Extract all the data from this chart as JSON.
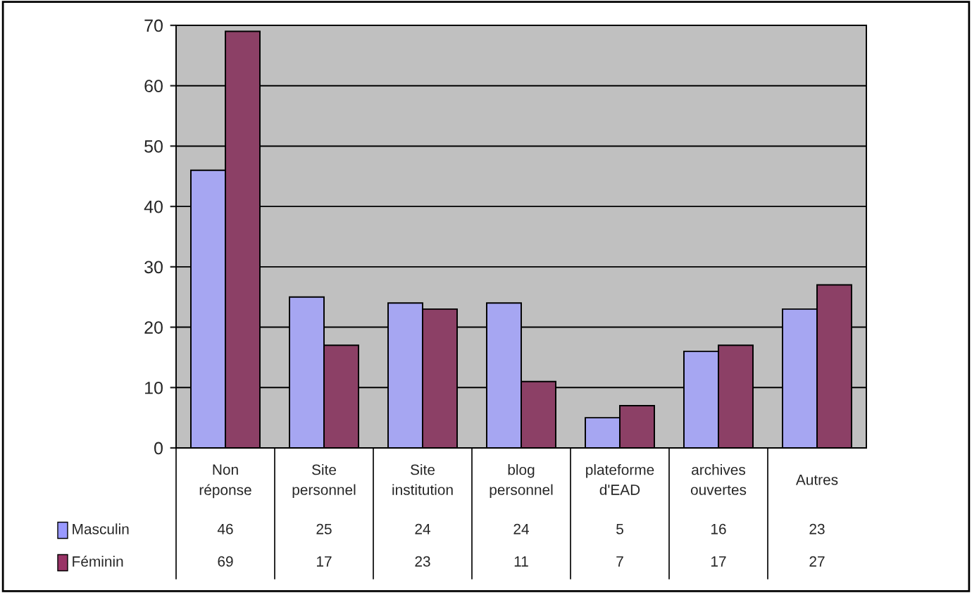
{
  "chart_data": {
    "type": "bar",
    "categories": [
      "Non réponse",
      "Site personnel",
      "Site institution",
      "blog personnel",
      "plateforme d'EAD",
      "archives ouvertes",
      "Autres"
    ],
    "series": [
      {
        "name": "Masculin",
        "color": "#9999ff",
        "values": [
          46,
          25,
          24,
          24,
          5,
          16,
          23
        ]
      },
      {
        "name": "Féminin",
        "color": "#993366",
        "values": [
          69,
          17,
          23,
          11,
          7,
          17,
          27
        ]
      }
    ],
    "ylim": [
      0,
      70
    ],
    "yticks": [
      0,
      10,
      20,
      30,
      40,
      50,
      60,
      70
    ],
    "grid": "y",
    "data_labels": true,
    "legend": "bottom"
  }
}
